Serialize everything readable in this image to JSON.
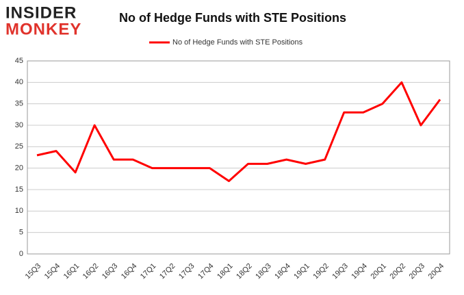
{
  "logo": {
    "line1": "INSIDER",
    "line2": "MONKEY"
  },
  "chart_data": {
    "type": "line",
    "title": "No of Hedge Funds with STE Positions",
    "categories": [
      "15Q3",
      "15Q4",
      "16Q1",
      "16Q2",
      "16Q3",
      "16Q4",
      "17Q1",
      "17Q2",
      "17Q3",
      "17Q4",
      "18Q1",
      "18Q2",
      "18Q3",
      "18Q4",
      "19Q1",
      "19Q2",
      "19Q3",
      "19Q4",
      "20Q1",
      "20Q2",
      "20Q3",
      "20Q4"
    ],
    "series": [
      {
        "name": "No of Hedge Funds with STE Positions",
        "color": "#ff0000",
        "values": [
          23,
          24,
          19,
          30,
          22,
          22,
          20,
          20,
          20,
          20,
          17,
          21,
          21,
          22,
          21,
          22,
          33,
          33,
          35,
          40,
          30,
          36
        ]
      }
    ],
    "ylim": [
      0,
      45
    ],
    "yticks": [
      0,
      5,
      10,
      15,
      20,
      25,
      30,
      35,
      40,
      45
    ],
    "grid": true,
    "legend": "top"
  }
}
